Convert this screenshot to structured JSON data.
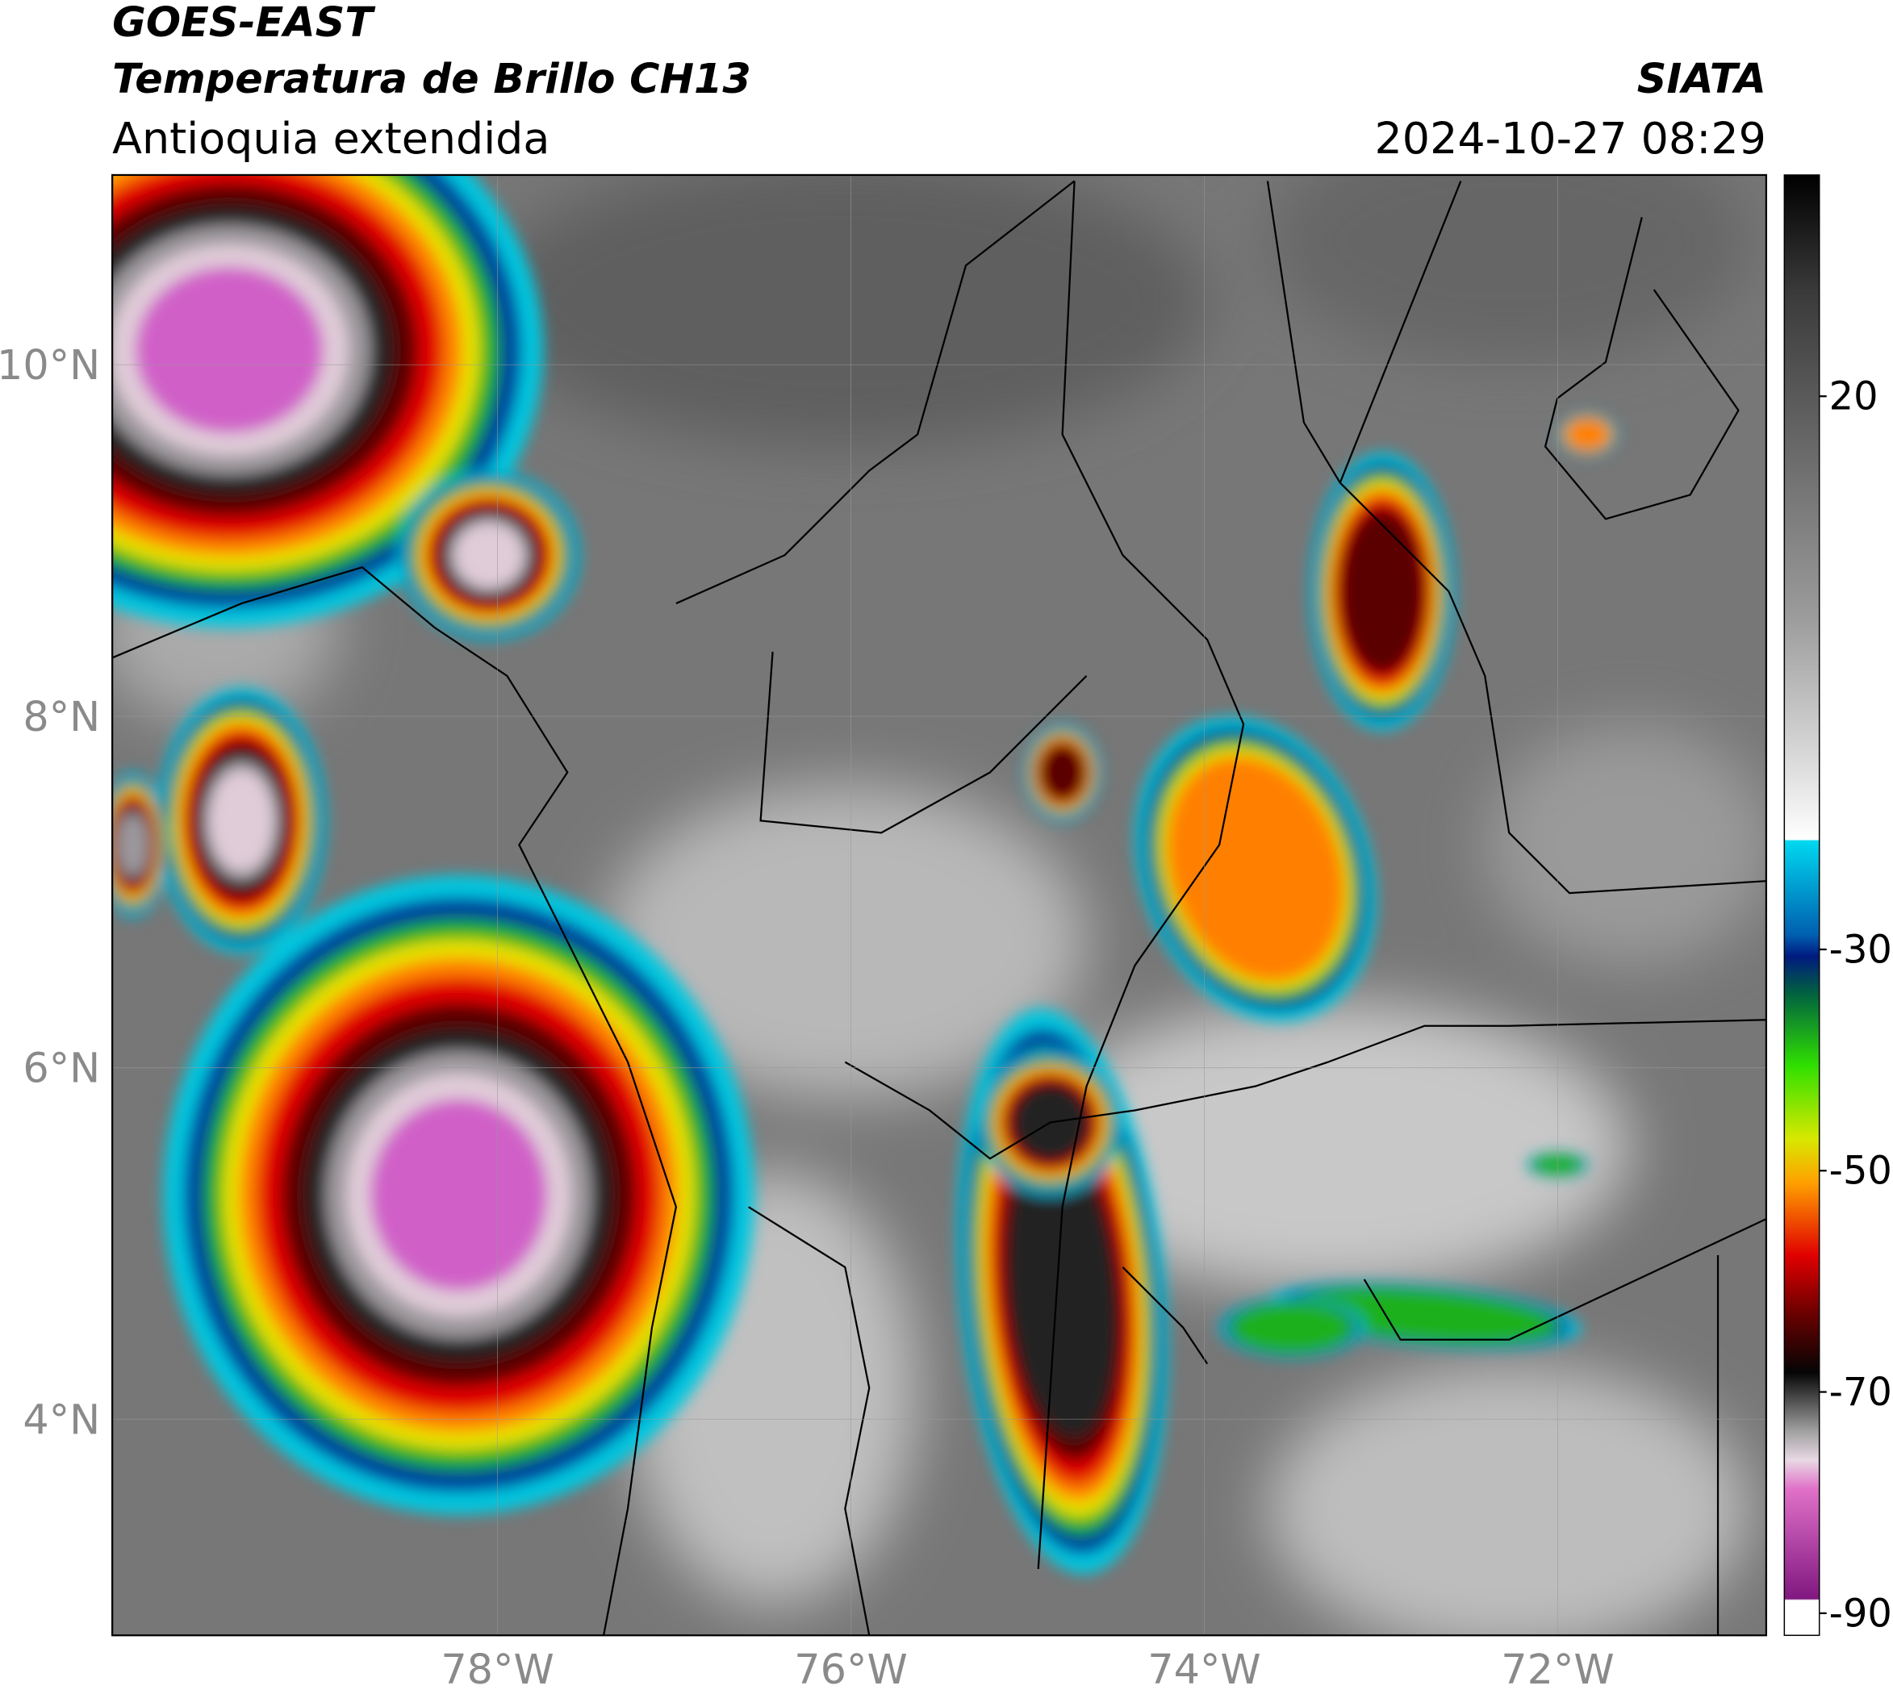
{
  "header": {
    "title_line1": "GOES-EAST",
    "title_line2": "Temperatura de Brillo CH13",
    "subtitle": "Antioquia extendida",
    "source": "SIATA",
    "datetime": "2024-10-27 08:29"
  },
  "map": {
    "xlim": [
      -80.18,
      -70.82
    ],
    "ylim": [
      2.77,
      11.08
    ],
    "xticks": [
      {
        "value": -78,
        "label": "78°W"
      },
      {
        "value": -76,
        "label": "76°W"
      },
      {
        "value": -74,
        "label": "74°W"
      },
      {
        "value": -72,
        "label": "72°W"
      }
    ],
    "yticks": [
      {
        "value": 10,
        "label": "10°N"
      },
      {
        "value": 8,
        "label": "8°N"
      },
      {
        "value": 6,
        "label": "6°N"
      },
      {
        "value": 4,
        "label": "4°N"
      }
    ]
  },
  "colorbar": {
    "lim": [
      -92,
      40
    ],
    "ticks": [
      20,
      -30,
      -50,
      -70,
      -90
    ]
  }
}
